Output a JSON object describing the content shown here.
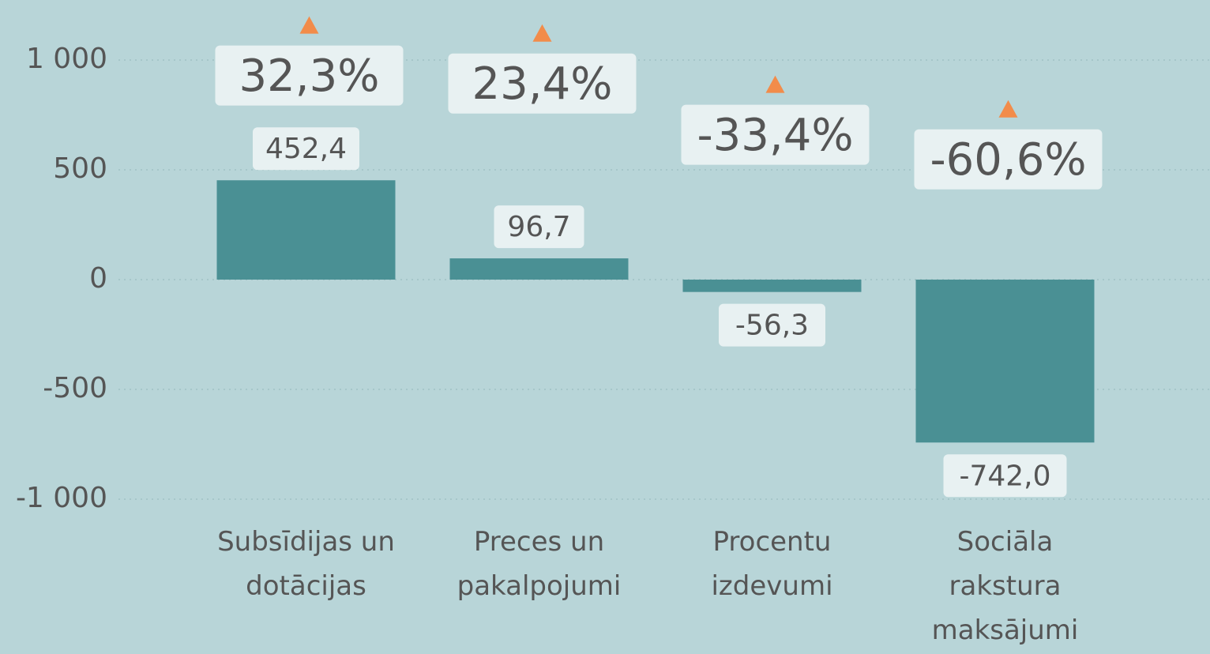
{
  "chart_data": {
    "type": "bar",
    "categories": [
      "Subsīdijas un dotācijas",
      "Preces un pakalpojumi",
      "Procentu izdevumi",
      "Sociāla rakstura maksājumi"
    ],
    "values": [
      452.4,
      96.7,
      -56.3,
      -742.0
    ],
    "value_labels": [
      "452,4",
      "96,7",
      "-56,3",
      "-742,0"
    ],
    "color": "#4a9094",
    "ylim": [
      -1000,
      1000
    ],
    "yticks": [
      {
        "value": 1000,
        "label": "1 000"
      },
      500,
      0,
      -500,
      {
        "value": -1000,
        "label": "-1 000"
      }
    ],
    "grid": true,
    "changes": {
      "values": [
        32.3,
        23.4,
        -33.4,
        -60.6
      ],
      "value_labels": [
        "32,3%",
        "23,4%",
        "-33,4%",
        "-60,6%"
      ],
      "color": "#f28c4a",
      "axis": "y2"
    },
    "y2lim": [
      -665,
      60
    ]
  }
}
